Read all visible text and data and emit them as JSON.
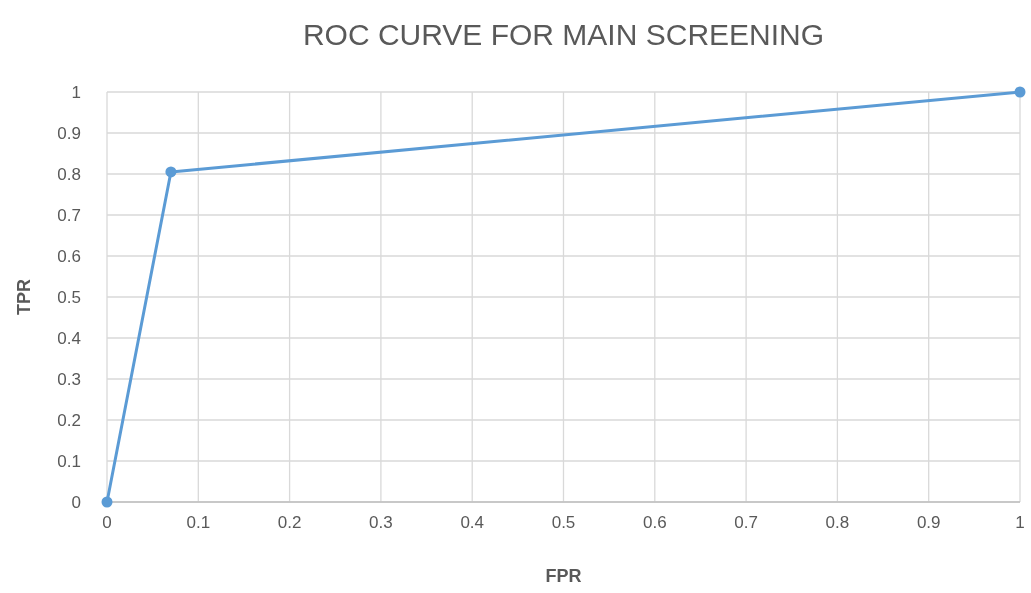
{
  "chart_data": {
    "type": "line",
    "title": "ROC CURVE FOR MAIN SCREENING",
    "xlabel": "FPR",
    "ylabel": "TPR",
    "x": [
      0,
      0.07,
      1
    ],
    "series": [
      {
        "color": "#5b9bd5",
        "values": [
          0,
          0.805,
          1
        ]
      }
    ],
    "xlim": [
      0,
      1
    ],
    "xticks": [
      0,
      0.1,
      0.2,
      0.3,
      0.4,
      0.5,
      0.6,
      0.7,
      0.8,
      0.9,
      1
    ],
    "ylim": [
      0,
      1
    ],
    "yticks": [
      0,
      0.1,
      0.2,
      0.3,
      0.4,
      0.5,
      0.6,
      0.7,
      0.8,
      0.9,
      1
    ],
    "grid": true,
    "marker": "circle",
    "line_style": "solid"
  }
}
